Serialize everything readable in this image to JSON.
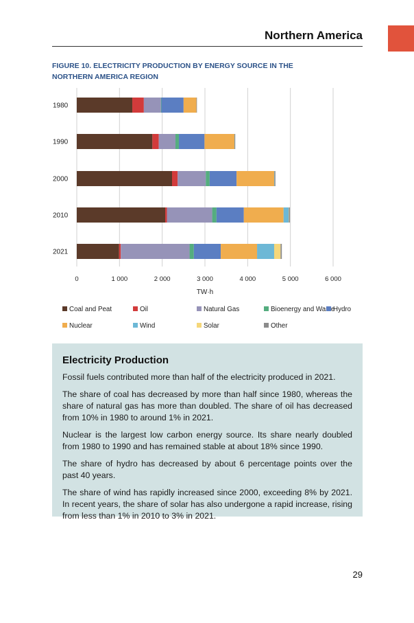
{
  "header": {
    "section_title": "Northern America"
  },
  "figure": {
    "title": "FIGURE 10. ELECTRICITY PRODUCTION BY ENERGY SOURCE IN THE NORTHERN AMERICA REGION"
  },
  "chart_data": {
    "type": "bar",
    "orientation": "horizontal",
    "stacked": true,
    "title": "FIGURE 10. ELECTRICITY PRODUCTION BY ENERGY SOURCE IN THE NORTHERN AMERICA REGION",
    "xlabel": "TW·h",
    "ylabel": "",
    "xlim": [
      0,
      6000
    ],
    "xticks": [
      0,
      1000,
      2000,
      3000,
      4000,
      5000,
      6000
    ],
    "xtick_labels": [
      "0",
      "1 000",
      "2 000",
      "3 000",
      "4 000",
      "5 000",
      "6 000"
    ],
    "grid": true,
    "legend_position": "bottom",
    "categories": [
      "1980",
      "1990",
      "2000",
      "2010",
      "2021"
    ],
    "series": [
      {
        "name": "Coal and Peat",
        "color": "#5b3a29",
        "values": [
          1300,
          1770,
          2230,
          2070,
          990
        ]
      },
      {
        "name": "Oil",
        "color": "#d23b3b",
        "values": [
          270,
          150,
          130,
          40,
          40
        ]
      },
      {
        "name": "Natural Gas",
        "color": "#9693b8",
        "values": [
          400,
          390,
          660,
          1060,
          1610
        ]
      },
      {
        "name": "Bioenergy and Waste",
        "color": "#54ad7f",
        "values": [
          10,
          80,
          90,
          100,
          100
        ]
      },
      {
        "name": "Hydro",
        "color": "#5b7ec2",
        "values": [
          520,
          600,
          630,
          640,
          630
        ]
      },
      {
        "name": "Nuclear",
        "color": "#f0ad4e",
        "values": [
          300,
          700,
          880,
          930,
          850
        ]
      },
      {
        "name": "Wind",
        "color": "#6db8d6",
        "values": [
          0,
          5,
          10,
          120,
          400
        ]
      },
      {
        "name": "Solar",
        "color": "#f5d77a",
        "values": [
          0,
          0,
          0,
          5,
          150
        ]
      },
      {
        "name": "Other",
        "color": "#8c8c8c",
        "values": [
          5,
          15,
          20,
          25,
          30
        ]
      }
    ]
  },
  "textbox": {
    "heading": "Electricity Production",
    "paragraphs": [
      "Fossil fuels contributed more than half of the electricity produced in 2021.",
      "The share of coal has decreased by more than half since 1980, whereas the share of natural gas has more than doubled. The share of oil has decreased from 10% in 1980 to around 1% in 2021.",
      "Nuclear is the largest low carbon energy source. Its share nearly doubled from 1980 to 1990 and has remained stable at about 18% since 1990.",
      "The share of hydro has decreased by about 6 percentage points over the past 40 years.",
      "The share of wind has rapidly increased since 2000, exceeding 8% by 2021. In recent years, the share of solar has also undergone a rapid increase, rising from less than 1% in 2010 to 3% in 2021."
    ]
  },
  "page": {
    "number": "29"
  }
}
